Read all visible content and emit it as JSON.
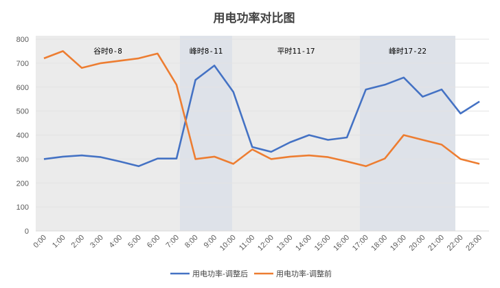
{
  "chart_data": {
    "type": "line",
    "title": "用电功率对比图",
    "xlabel": "",
    "ylabel": "",
    "ylim": [
      0,
      800
    ],
    "yticks": [
      0,
      100,
      200,
      300,
      400,
      500,
      600,
      700,
      800
    ],
    "grid": true,
    "legend_position": "bottom",
    "categories": [
      "0:00",
      "1:00",
      "2:00",
      "3:00",
      "4:00",
      "5:00",
      "6:00",
      "7:00",
      "8:00",
      "9:00",
      "10:00",
      "11:00",
      "12:00",
      "13:00",
      "14:00",
      "15:00",
      "16:00",
      "17:00",
      "18:00",
      "19:00",
      "20:00",
      "21:00",
      "22:00",
      "23:00"
    ],
    "series": [
      {
        "name": "用电功率-调整后",
        "color": "#4472C4",
        "values": [
          300,
          310,
          315,
          308,
          290,
          270,
          302,
          302,
          630,
          690,
          580,
          350,
          330,
          370,
          400,
          380,
          390,
          590,
          610,
          640,
          560,
          590,
          490,
          540
        ]
      },
      {
        "name": "用电功率-调整前",
        "color": "#ED7D31",
        "values": [
          720,
          750,
          680,
          700,
          710,
          720,
          740,
          610,
          300,
          310,
          280,
          340,
          300,
          310,
          315,
          308,
          290,
          270,
          302,
          400,
          380,
          360,
          300,
          280
        ]
      }
    ],
    "bands": [
      {
        "label": "谷时0-8",
        "color": "#EBEBEB"
      },
      {
        "label": "峰时8-11",
        "color": "#DEE2E9"
      },
      {
        "label": "平时11-17",
        "color": "#EBEBEB"
      },
      {
        "label": "峰时17-22",
        "color": "#DEE2E9"
      }
    ]
  }
}
